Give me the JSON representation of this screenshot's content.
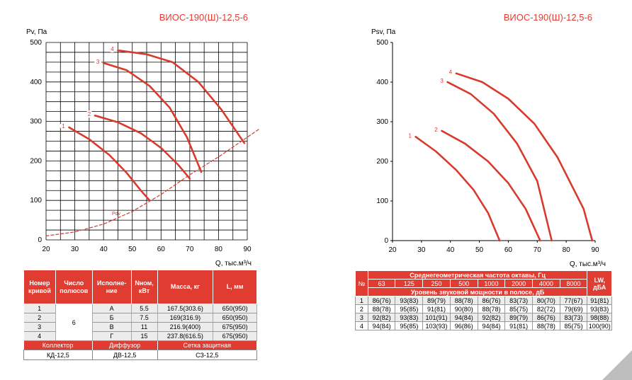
{
  "chart_data": [
    {
      "type": "line",
      "title": "ВИОС-190(Ш)-12,5-6",
      "ylabel": "Pv, Па",
      "xlabel": "Q, тыс.м³/ч",
      "xlim": [
        20,
        90
      ],
      "ylim": [
        0,
        500
      ],
      "xticks": [
        20,
        30,
        40,
        50,
        60,
        70,
        80,
        90
      ],
      "yticks": [
        0,
        100,
        200,
        300,
        400,
        500
      ],
      "grid": true,
      "series": [
        {
          "name": "1",
          "x": [
            28,
            35,
            42,
            48,
            53,
            56
          ],
          "y": [
            285,
            255,
            215,
            170,
            125,
            100
          ]
        },
        {
          "name": "2",
          "x": [
            37,
            45,
            53,
            60,
            66,
            70
          ],
          "y": [
            315,
            298,
            270,
            233,
            190,
            155
          ]
        },
        {
          "name": "3",
          "x": [
            40,
            48,
            56,
            63,
            69,
            74
          ],
          "y": [
            448,
            430,
            390,
            335,
            260,
            172
          ]
        },
        {
          "name": "4",
          "x": [
            45,
            55,
            64,
            73,
            81,
            89
          ],
          "y": [
            480,
            470,
            450,
            400,
            330,
            245
          ]
        },
        {
          "name": "Pdv",
          "x": [
            20,
            30,
            40,
            50,
            60,
            70,
            80,
            94
          ],
          "y": [
            10,
            20,
            40,
            72,
            115,
            165,
            210,
            280
          ]
        }
      ]
    },
    {
      "type": "line",
      "title": "ВИОС-190(Ш)-12,5-6",
      "ylabel": "Psv, Па",
      "xlabel": "Q, тыс.м³/ч",
      "xlim": [
        20,
        90
      ],
      "ylim": [
        0,
        500
      ],
      "xticks": [
        20,
        30,
        40,
        50,
        60,
        70,
        80,
        90
      ],
      "yticks": [
        0,
        100,
        200,
        300,
        400,
        500
      ],
      "grid": false,
      "series": [
        {
          "name": "1",
          "x": [
            28,
            35,
            42,
            48,
            53,
            57
          ],
          "y": [
            262,
            225,
            178,
            128,
            70,
            0
          ]
        },
        {
          "name": "2",
          "x": [
            37,
            45,
            53,
            60,
            66,
            71
          ],
          "y": [
            277,
            245,
            200,
            145,
            80,
            0
          ]
        },
        {
          "name": "3",
          "x": [
            39,
            47,
            55,
            63,
            70,
            75
          ],
          "y": [
            400,
            370,
            320,
            245,
            150,
            0
          ]
        },
        {
          "name": "4",
          "x": [
            42,
            51,
            60,
            69,
            77,
            86,
            89
          ],
          "y": [
            422,
            400,
            358,
            295,
            210,
            80,
            0
          ]
        }
      ]
    }
  ],
  "left_chart": {
    "label_pdv": "Pdv"
  },
  "table_left": {
    "headers": [
      "Номер кривой",
      "Число полюсов",
      "Исполне-ние",
      "Nном, кВт",
      "Масса, кг",
      "L, мм"
    ],
    "poles": "6",
    "rows": [
      {
        "num": "1",
        "exec": "А",
        "power": "5.5",
        "mass": "167.5(303.6)",
        "length": "650(950)"
      },
      {
        "num": "2",
        "exec": "Б",
        "power": "7.5",
        "mass": "169(316.9)",
        "length": "650(950)"
      },
      {
        "num": "3",
        "exec": "В",
        "power": "11",
        "mass": "216.9(400)",
        "length": "675(950)"
      },
      {
        "num": "4",
        "exec": "Г",
        "power": "15",
        "mass": "237.8(616.5)",
        "length": "675(950)"
      }
    ],
    "accessories_headers": [
      "Коллектор",
      "Диффузор",
      "Сетка защитная"
    ],
    "accessories_values": [
      "КД-12,5",
      "ДВ-12,5",
      "СЗ-12,5"
    ]
  },
  "table_right": {
    "num_header": "№",
    "freq_header": "Среднегеометрическая частота октавы, Гц",
    "freqs": [
      "63",
      "125",
      "250",
      "500",
      "1000",
      "2000",
      "4000",
      "8000"
    ],
    "level_header": "Уровень звуковой мощности в полосе, дБ",
    "lw_header": "LW, дБА",
    "rows": [
      {
        "num": "1",
        "vals": [
          "86(76)",
          "93(83)",
          "89(79)",
          "88(78)",
          "86(76)",
          "83(73)",
          "80(70)",
          "77(67)"
        ],
        "lw": "91(81)"
      },
      {
        "num": "2",
        "vals": [
          "88(78)",
          "95(85)",
          "91(81)",
          "90(80)",
          "88(78)",
          "85(75)",
          "82(72)",
          "79(69)"
        ],
        "lw": "93(83)"
      },
      {
        "num": "3",
        "vals": [
          "92(82)",
          "93(83)",
          "101(91)",
          "94(84)",
          "92(82)",
          "89(79)",
          "86(76)",
          "83(73)"
        ],
        "lw": "98(88)"
      },
      {
        "num": "4",
        "vals": [
          "94(84)",
          "95(85)",
          "103(93)",
          "96(86)",
          "94(84)",
          "91(81)",
          "88(78)",
          "85(75)"
        ],
        "lw": "100(90)"
      }
    ]
  },
  "colors": {
    "accent": "#e03c31",
    "curve": "#d93a2e",
    "grid": "#000000"
  }
}
